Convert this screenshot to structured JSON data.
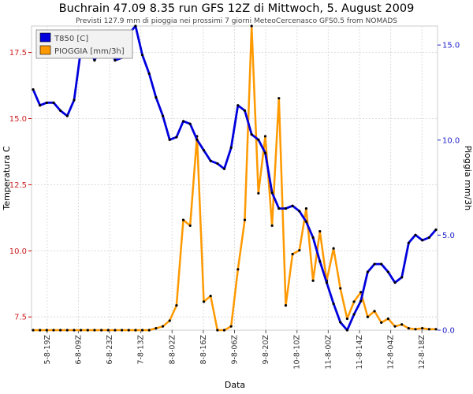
{
  "chart_data": {
    "type": "line",
    "title": "Buchrain 47.09 8.35 run GFS 12Z di Mittwoch, 5. August 2009",
    "subtitle": "Previsti 127.9 mm di pioggia nei prossimi 7 giorni MeteoCercenasco GFS0.5 from NOMADS",
    "xlabel": "Data",
    "ylabel_left": "Temperatura C",
    "ylabel_right": "Pioggia mm/3h",
    "ylim_left": [
      7.0,
      18.5
    ],
    "ylim_right": [
      0,
      16
    ],
    "yticks_left": [
      "7.5",
      "10.0",
      "12.5",
      "15.0",
      "17.5"
    ],
    "yticks_right": [
      "0.0",
      "5.0",
      "10.0",
      "15.0"
    ],
    "x_tick_labels": [
      "5-8-19Z",
      "6-8-09Z",
      "6-8-23Z",
      "7-8-13Z",
      "8-8-02Z",
      "8-8-16Z",
      "9-8-06Z",
      "9-8-20Z",
      "10-8-10Z",
      "11-8-00Z",
      "11-8-14Z",
      "12-8-04Z",
      "12-8-18Z"
    ],
    "grid": true,
    "legend_position": "top-left",
    "series": [
      {
        "name": "T850 [C]",
        "axis": "left",
        "color": "#0000dd",
        "values": [
          16.1,
          15.5,
          15.6,
          15.6,
          15.3,
          15.1,
          15.7,
          17.6,
          17.8,
          17.2,
          17.7,
          17.9,
          17.2,
          17.3,
          18.2,
          18.5,
          17.4,
          16.7,
          15.8,
          15.1,
          14.2,
          14.3,
          14.9,
          14.8,
          14.2,
          13.8,
          13.4,
          13.3,
          13.1,
          13.9,
          15.5,
          15.3,
          14.4,
          14.2,
          13.7,
          12.2,
          11.6,
          11.6,
          11.7,
          11.5,
          11.1,
          10.5,
          9.6,
          8.8,
          8.0,
          7.3,
          7.0,
          7.6,
          8.1,
          9.2,
          9.5,
          9.5,
          9.2,
          8.8,
          9.0,
          10.3,
          10.6,
          10.4,
          10.5,
          10.8
        ]
      },
      {
        "name": "PIOGGIA [mm/3h]",
        "axis": "right",
        "color": "#ff9900",
        "values": [
          0,
          0,
          0,
          0,
          0,
          0,
          0,
          0,
          0,
          0,
          0,
          0,
          0,
          0,
          0,
          0,
          0,
          0,
          0.1,
          0.2,
          0.5,
          1.3,
          5.8,
          5.5,
          10.2,
          1.5,
          1.8,
          0,
          0,
          0.2,
          3.2,
          5.8,
          16,
          7.2,
          10.2,
          5.5,
          12.2,
          1.3,
          4.0,
          4.2,
          6.4,
          2.6,
          5.2,
          2.6,
          4.3,
          2.2,
          0.6,
          1.5,
          2.0,
          0.7,
          1.0,
          0.4,
          0.6,
          0.2,
          0.3,
          0.1,
          0.05,
          0.1,
          0.05,
          0.05
        ]
      }
    ]
  }
}
